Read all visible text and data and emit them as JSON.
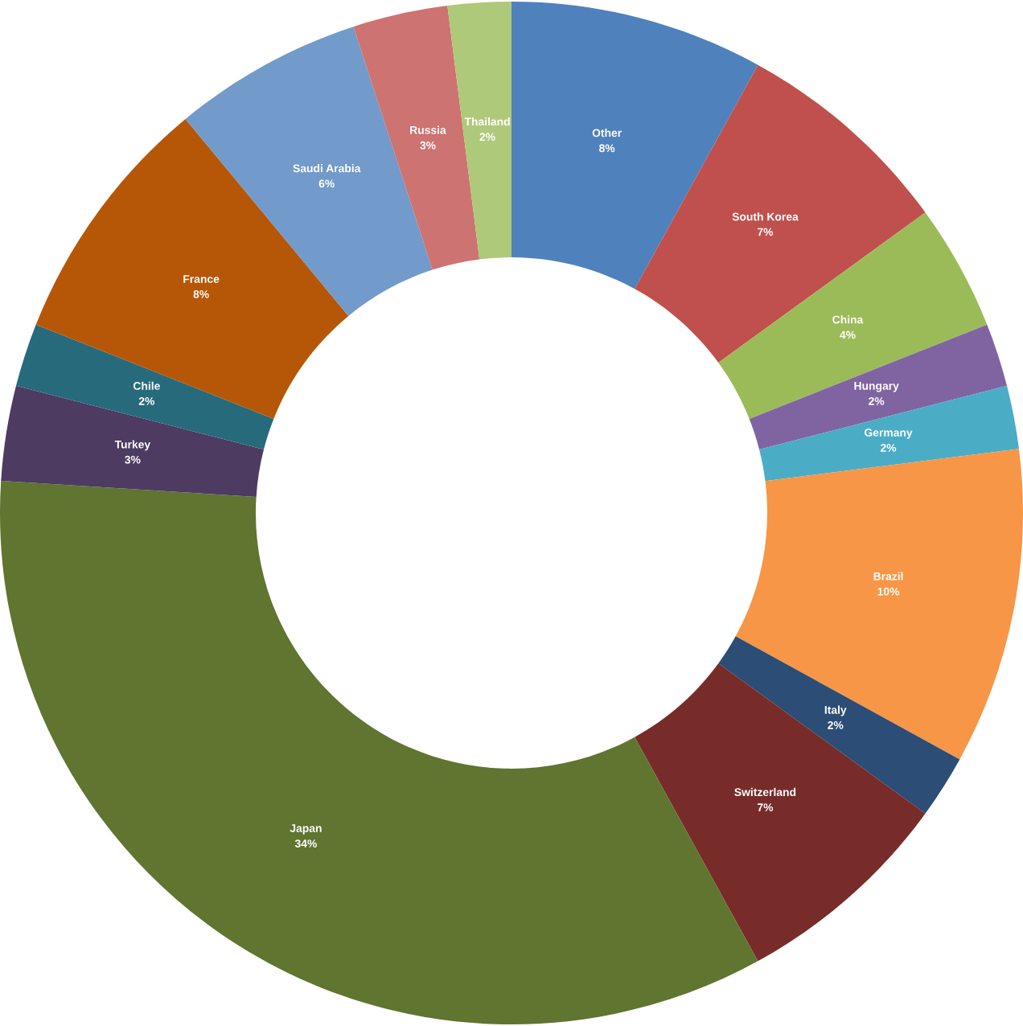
{
  "chart_data": {
    "type": "donut",
    "categories": [
      "Other",
      "South Korea",
      "China",
      "Hungary",
      "Germany",
      "Brazil",
      "Italy",
      "Switzerland",
      "Japan",
      "Turkey",
      "Chile",
      "France",
      "Saudi Arabia",
      "Russia",
      "Thailand"
    ],
    "values": [
      8,
      7,
      4,
      2,
      2,
      10,
      2,
      7,
      34,
      3,
      2,
      8,
      6,
      3,
      2
    ],
    "colors": [
      "#4f81bd",
      "#c0504d",
      "#9bbb59",
      "#8064a2",
      "#4bacc6",
      "#f79646",
      "#2c4d75",
      "#772c2a",
      "#5f7530",
      "#4d3b62",
      "#276a7c",
      "#b65708",
      "#729aca",
      "#cd7371",
      "#afc97a"
    ],
    "value_labels": [
      "8%",
      "7%",
      "4%",
      "2%",
      "2%",
      "10%",
      "2%",
      "7%",
      "34%",
      "3%",
      "2%",
      "8%",
      "6%",
      "3%",
      "2%"
    ]
  }
}
